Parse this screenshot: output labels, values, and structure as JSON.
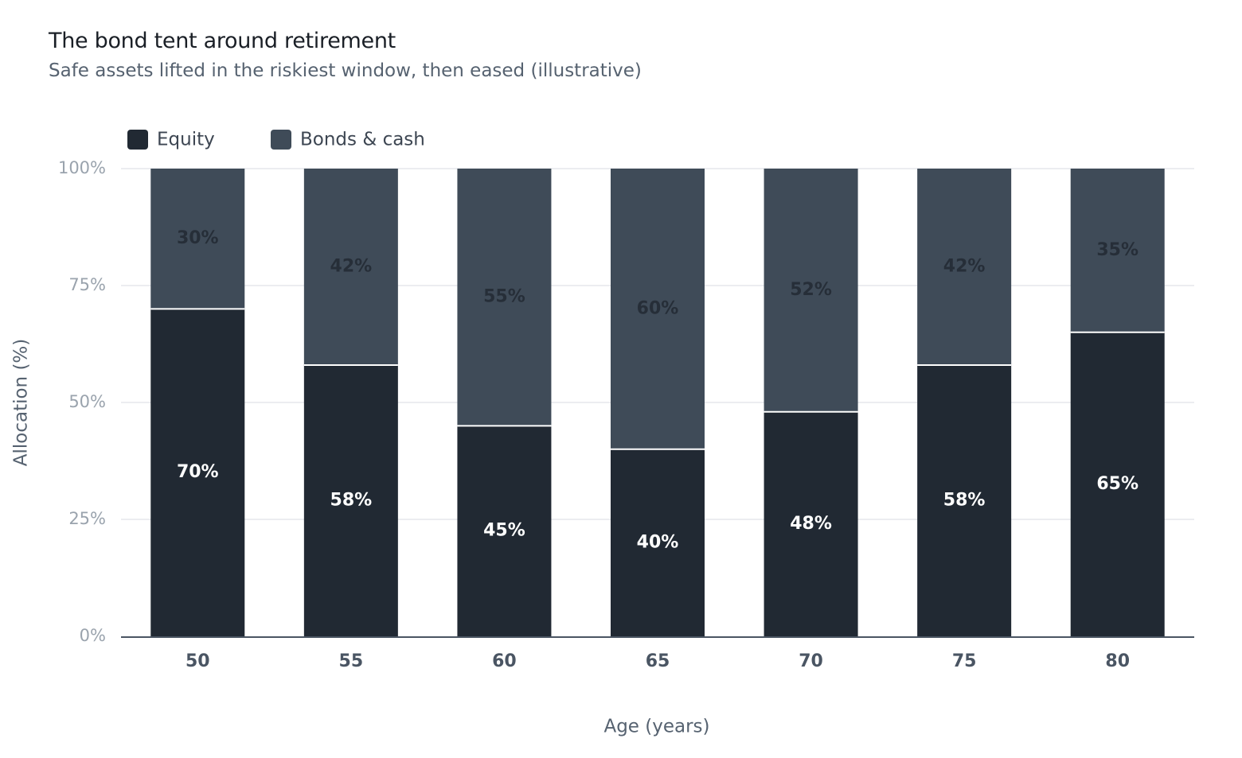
{
  "title": "The bond tent around retirement",
  "subtitle": "Safe assets lifted in the riskiest window, then eased (illustrative)",
  "chart_data": {
    "type": "bar",
    "stacked": true,
    "title": "The bond tent around retirement",
    "subtitle": "Safe assets lifted in the riskiest window, then eased (illustrative)",
    "xlabel": "Age (years)",
    "ylabel": "Allocation (%)",
    "categories": [
      "50",
      "55",
      "60",
      "65",
      "70",
      "75",
      "80"
    ],
    "series": [
      {
        "name": "Equity",
        "color": "#212933",
        "values": [
          70,
          58,
          45,
          40,
          48,
          58,
          65
        ]
      },
      {
        "name": "Bonds & cash",
        "color": "#3f4b58",
        "values": [
          30,
          42,
          55,
          60,
          52,
          42,
          35
        ]
      }
    ],
    "data_labels": {
      "Equity": [
        "70%",
        "58%",
        "45%",
        "40%",
        "48%",
        "58%",
        "65%"
      ],
      "Bonds & cash": [
        "30%",
        "42%",
        "55%",
        "60%",
        "52%",
        "42%",
        "35%"
      ]
    },
    "ylim": [
      0,
      100
    ],
    "yticks": [
      0,
      25,
      50,
      75,
      100
    ],
    "ytick_labels": [
      "0%",
      "25%",
      "50%",
      "75%",
      "100%"
    ],
    "grid": true,
    "legend": "top-left",
    "colors": {
      "equity_label": "#ffffff",
      "bonds_label": "#262e38",
      "grid": "#e5e7eb",
      "axis": "#4a5563",
      "tick_label": "#9aa3ad",
      "category_label": "#4a5563",
      "axis_title": "#566270"
    }
  }
}
